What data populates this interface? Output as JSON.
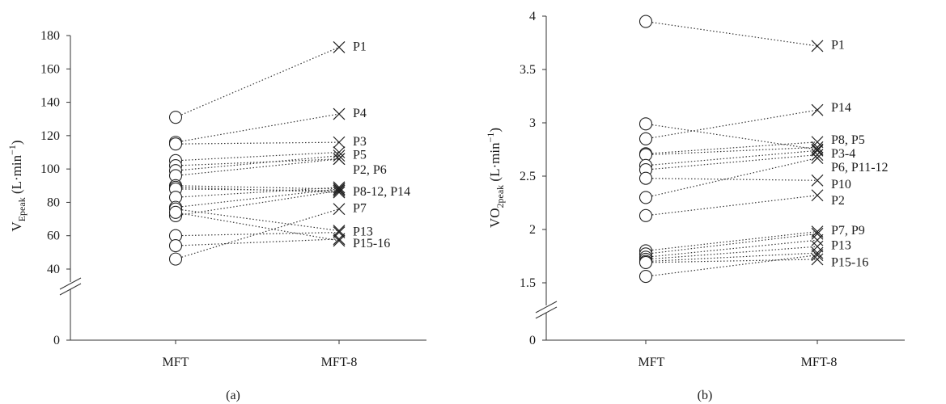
{
  "chart_data": [
    {
      "type": "line",
      "caption": "(a)",
      "ylabel": {
        "main": "V",
        "sub": "Epeak",
        "rest": " (L·min",
        "sup": "−1",
        "close": ")"
      },
      "categories": [
        "MFT",
        "MFT-8"
      ],
      "yticks": [
        "0",
        "40",
        "60",
        "80",
        "100",
        "120",
        "140",
        "160",
        "180"
      ],
      "ylim": [
        40,
        180
      ],
      "axis_break": true,
      "series": [
        {
          "mft": 131,
          "mft8": 173
        },
        {
          "mft": 116,
          "mft8": 133
        },
        {
          "mft": 115,
          "mft8": 116
        },
        {
          "mft": 105,
          "mft8": 110
        },
        {
          "mft": 102,
          "mft8": 106
        },
        {
          "mft": 99,
          "mft8": 108
        },
        {
          "mft": 96,
          "mft8": 106
        },
        {
          "mft": 90,
          "mft8": 88
        },
        {
          "mft": 89,
          "mft8": 86
        },
        {
          "mft": 88,
          "mft8": 87
        },
        {
          "mft": 83,
          "mft8": 89
        },
        {
          "mft": 77,
          "mft8": 88
        },
        {
          "mft": 76,
          "mft8": 63
        },
        {
          "mft": 72,
          "mft8": 87
        },
        {
          "mft": 74,
          "mft8": 57
        },
        {
          "mft": 60,
          "mft8": 62
        },
        {
          "mft": 54,
          "mft8": 58
        },
        {
          "mft": 46,
          "mft8": 76
        }
      ],
      "point_labels": [
        {
          "text": "P1",
          "y": 174
        },
        {
          "text": "P4",
          "y": 134
        },
        {
          "text": "P3",
          "y": 117
        },
        {
          "text": "P5",
          "y": 109
        },
        {
          "text": "P2, P6",
          "y": 100
        },
        {
          "text": "P8-12, P14",
          "y": 87
        },
        {
          "text": "P7",
          "y": 77
        },
        {
          "text": "P13",
          "y": 63
        },
        {
          "text": "P15-16",
          "y": 56
        }
      ]
    },
    {
      "type": "line",
      "caption": "(b)",
      "ylabel": {
        "main": "VO",
        "sub": "2peak",
        "rest": " (L·min",
        "sup": "−1",
        "close": ")"
      },
      "categories": [
        "MFT",
        "MFT-8"
      ],
      "yticks": [
        "0",
        "1.5",
        "2",
        "2.5",
        "3",
        "3.5",
        "4"
      ],
      "ylim": [
        1.5,
        4
      ],
      "axis_break": true,
      "series": [
        {
          "mft": 3.95,
          "mft8": 3.72
        },
        {
          "mft": 2.99,
          "mft8": 2.75
        },
        {
          "mft": 2.85,
          "mft8": 3.12
        },
        {
          "mft": 2.71,
          "mft8": 2.82
        },
        {
          "mft": 2.7,
          "mft8": 2.77
        },
        {
          "mft": 2.6,
          "mft8": 2.74
        },
        {
          "mft": 2.56,
          "mft8": 2.7
        },
        {
          "mft": 2.48,
          "mft8": 2.46
        },
        {
          "mft": 2.3,
          "mft8": 2.67
        },
        {
          "mft": 2.13,
          "mft8": 2.32
        },
        {
          "mft": 1.8,
          "mft8": 1.98
        },
        {
          "mft": 1.77,
          "mft8": 1.96
        },
        {
          "mft": 1.74,
          "mft8": 1.9
        },
        {
          "mft": 1.72,
          "mft8": 1.84
        },
        {
          "mft": 1.7,
          "mft8": 1.78
        },
        {
          "mft": 1.69,
          "mft8": 1.72
        },
        {
          "mft": 1.56,
          "mft8": 1.76
        }
      ],
      "point_labels": [
        {
          "text": "P1",
          "y": 3.74
        },
        {
          "text": "P14",
          "y": 3.15
        },
        {
          "text": "P8, P5",
          "y": 2.85
        },
        {
          "text": "P3-4",
          "y": 2.72
        },
        {
          "text": "P6, P11-12",
          "y": 2.59
        },
        {
          "text": "P10",
          "y": 2.43
        },
        {
          "text": "P2",
          "y": 2.28
        },
        {
          "text": "P7, P9",
          "y": 2.0
        },
        {
          "text": "P13",
          "y": 1.86
        },
        {
          "text": "P15-16",
          "y": 1.7
        }
      ]
    }
  ]
}
